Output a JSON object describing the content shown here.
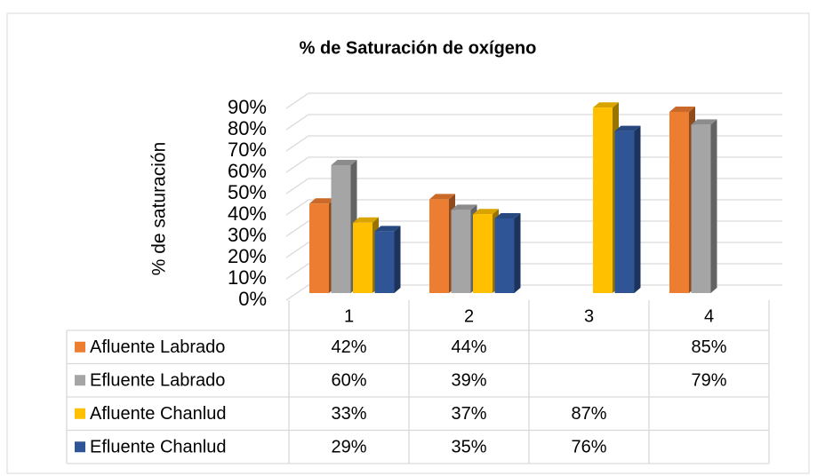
{
  "chart_data": {
    "type": "bar3d",
    "title": "% de Saturación de oxígeno",
    "y_label": "% de saturación",
    "categories": [
      "1",
      "2",
      "3",
      "4"
    ],
    "series": [
      {
        "name": "Afluente Labrado",
        "color": "#ED7D31",
        "values": [
          42,
          44,
          null,
          85
        ],
        "value_labels": [
          "42%",
          "44%",
          null,
          "85%"
        ]
      },
      {
        "name": "Efluente Labrado",
        "color": "#A5A5A5",
        "values": [
          60,
          39,
          null,
          79
        ],
        "value_labels": [
          "60%",
          "39%",
          null,
          "79%"
        ]
      },
      {
        "name": "Afluente Chanlud",
        "color": "#FFC000",
        "values": [
          33,
          37,
          87,
          null
        ],
        "value_labels": [
          "33%",
          "37%",
          "87%",
          null
        ]
      },
      {
        "name": "Efluente Chanlud",
        "color": "#2F5597",
        "values": [
          29,
          35,
          76,
          null
        ],
        "value_labels": [
          "29%",
          "35%",
          "76%",
          null
        ]
      }
    ],
    "ylim": [
      0,
      90
    ],
    "yticks": [
      {
        "value": 0,
        "label": "0%"
      },
      {
        "value": 10,
        "label": "10%"
      },
      {
        "value": 20,
        "label": "20%"
      },
      {
        "value": 30,
        "label": "30%"
      },
      {
        "value": 40,
        "label": "40%"
      },
      {
        "value": 50,
        "label": "50%"
      },
      {
        "value": 60,
        "label": "60%"
      },
      {
        "value": 70,
        "label": "70%"
      },
      {
        "value": 80,
        "label": "80%"
      },
      {
        "value": 90,
        "label": "90%"
      }
    ],
    "grid": true,
    "data_table": true
  }
}
